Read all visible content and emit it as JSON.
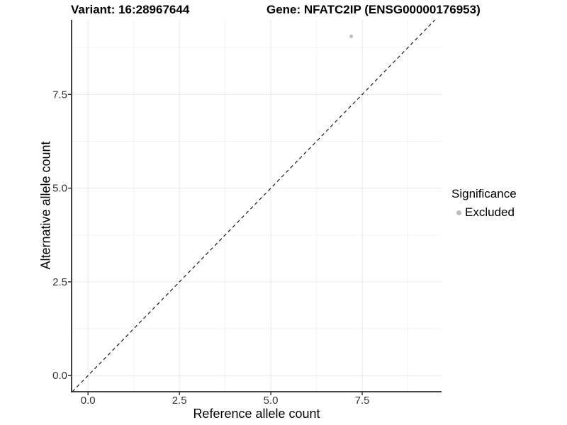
{
  "figure": {
    "title_left": "Variant: 16:28967644",
    "title_right": "Gene: NFATC2IP (ENSG00000176953)"
  },
  "axes": {
    "x_label": "Reference allele count",
    "y_label": "Alternative allele count"
  },
  "legend": {
    "title": "Significance",
    "items": [
      {
        "label": "Excluded",
        "color": "#bebebe",
        "marker": "circle"
      }
    ]
  },
  "chart_data": {
    "type": "scatter",
    "title": "Variant: 16:28967644 | Gene: NFATC2IP (ENSG00000176953)",
    "xlabel": "Reference allele count",
    "ylabel": "Alternative allele count",
    "xlim": [
      -0.45,
      9.67
    ],
    "ylim": [
      -0.43,
      9.49
    ],
    "x_ticks": [
      0.0,
      2.5,
      5.0,
      7.5
    ],
    "x_tick_labels": [
      "0.0",
      "2.5",
      "5.0",
      "7.5"
    ],
    "y_ticks": [
      0.0,
      2.5,
      5.0,
      7.5
    ],
    "y_tick_labels": [
      "0.0",
      "2.5",
      "5.0",
      "7.5"
    ],
    "x_minor_ticks": [
      1.25,
      3.75,
      6.25,
      8.75
    ],
    "y_minor_ticks": [
      1.25,
      3.75,
      6.25,
      8.75
    ],
    "grid": "major+minor",
    "legend_position": "right",
    "series": [
      {
        "name": "Excluded",
        "color": "#bebebe",
        "points": [
          {
            "x": 7.2,
            "y": 9.05
          }
        ]
      }
    ],
    "reference_line": {
      "slope": 1,
      "intercept": 0,
      "linetype": "dashed",
      "color": "#1a1a1a"
    }
  },
  "colors": {
    "background": "#ffffff",
    "axis_line": "#2b2b2b",
    "major_grid": "#e7e7e7",
    "minor_grid": "#f3f3f3",
    "tick_text": "#333333",
    "point": "#bebebe"
  }
}
